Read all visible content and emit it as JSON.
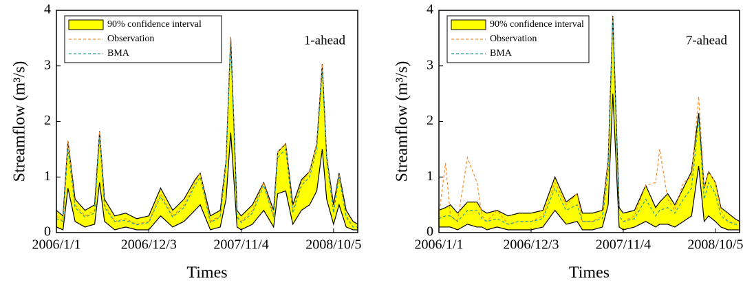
{
  "chart_data": [
    {
      "type": "line",
      "annotation": "1-ahead",
      "xlabel": "Times",
      "ylabel": "Streamflow (m³/s)",
      "legend": "upper left",
      "xlim": [
        "2006/1/1",
        "2009/1/1"
      ],
      "xticks": [
        "2006/1/1",
        "2006/12/3",
        "2007/11/4",
        "2008/10/5"
      ],
      "ylim": [
        0,
        4
      ],
      "yticks": [
        0,
        1,
        2,
        3,
        4
      ],
      "x": [
        "2006/1/1",
        "2006/1/25",
        "2006/2/12",
        "2006/3/10",
        "2006/4/15",
        "2006/5/20",
        "2006/6/7",
        "2006/6/25",
        "2006/8/1",
        "2006/9/10",
        "2006/10/20",
        "2006/12/3",
        "2007/1/15",
        "2007/2/28",
        "2007/4/10",
        "2007/5/20",
        "2007/6/8",
        "2007/7/15",
        "2007/8/20",
        "2007/9/10",
        "2007/9/27",
        "2007/10/20",
        "2007/11/4",
        "2007/12/15",
        "2008/1/25",
        "2008/3/1",
        "2008/3/16",
        "2008/4/14",
        "2008/5/10",
        "2008/6/10",
        "2008/7/10",
        "2008/8/5",
        "2008/8/25",
        "2008/9/10",
        "2008/10/5",
        "2008/10/25",
        "2008/11/20",
        "2008/12/15",
        "2009/1/1"
      ],
      "series": [
        {
          "name": "90% confidence interval",
          "color": "#ffff00",
          "upper": [
            0.4,
            0.3,
            1.65,
            0.6,
            0.4,
            0.5,
            1.82,
            0.6,
            0.3,
            0.35,
            0.25,
            0.3,
            0.8,
            0.4,
            0.6,
            0.95,
            1.07,
            0.3,
            0.4,
            1.3,
            3.52,
            0.4,
            0.3,
            0.5,
            0.9,
            0.4,
            1.45,
            1.6,
            0.5,
            0.95,
            1.1,
            1.6,
            3.03,
            1.37,
            0.5,
            1.07,
            0.4,
            0.2,
            0.15
          ],
          "lower": [
            0.1,
            0.05,
            0.8,
            0.2,
            0.1,
            0.15,
            0.9,
            0.2,
            0.05,
            0.1,
            0.05,
            0.05,
            0.3,
            0.1,
            0.2,
            0.4,
            0.5,
            0.05,
            0.1,
            0.6,
            1.8,
            0.1,
            0.05,
            0.15,
            0.4,
            0.1,
            0.7,
            0.75,
            0.15,
            0.4,
            0.5,
            0.75,
            1.5,
            0.6,
            0.15,
            0.5,
            0.1,
            0.05,
            0.05
          ]
        },
        {
          "name": "Observation",
          "color": "#f28c28",
          "values": [
            0.3,
            0.2,
            1.65,
            0.5,
            0.3,
            0.4,
            1.82,
            0.5,
            0.2,
            0.25,
            0.15,
            0.2,
            0.7,
            0.3,
            0.5,
            0.9,
            1.07,
            0.2,
            0.3,
            1.3,
            3.52,
            0.3,
            0.2,
            0.4,
            0.9,
            0.3,
            1.45,
            1.6,
            0.4,
            0.9,
            1.1,
            1.6,
            3.03,
            1.37,
            0.4,
            1.05,
            0.3,
            0.1,
            0.1
          ]
        },
        {
          "name": "BMA",
          "color": "#2a9d9d",
          "values": [
            0.25,
            0.2,
            1.5,
            0.45,
            0.28,
            0.35,
            1.7,
            0.45,
            0.2,
            0.22,
            0.14,
            0.18,
            0.65,
            0.28,
            0.45,
            0.85,
            1.0,
            0.18,
            0.28,
            1.2,
            3.4,
            0.28,
            0.18,
            0.35,
            0.85,
            0.28,
            1.35,
            1.5,
            0.35,
            0.85,
            1.0,
            1.5,
            2.9,
            1.3,
            0.35,
            1.0,
            0.28,
            0.1,
            0.1
          ]
        }
      ]
    },
    {
      "type": "line",
      "annotation": "7-ahead",
      "xlabel": "Times",
      "ylabel": "Streamflow (m³/s)",
      "legend": "upper left",
      "xlim": [
        "2006/1/1",
        "2009/1/1"
      ],
      "xticks": [
        "2006/1/1",
        "2006/12/3",
        "2007/11/4",
        "2008/10/5"
      ],
      "ylim": [
        0,
        4
      ],
      "yticks": [
        0,
        1,
        2,
        3,
        4
      ],
      "x": [
        "2006/1/1",
        "2006/1/25",
        "2006/2/12",
        "2006/3/10",
        "2006/4/15",
        "2006/5/20",
        "2006/6/7",
        "2006/6/25",
        "2006/8/1",
        "2006/9/10",
        "2006/10/20",
        "2006/12/3",
        "2007/1/15",
        "2007/2/28",
        "2007/4/10",
        "2007/5/20",
        "2007/6/8",
        "2007/7/15",
        "2007/8/20",
        "2007/9/10",
        "2007/9/27",
        "2007/10/20",
        "2007/11/4",
        "2007/12/15",
        "2008/1/25",
        "2008/3/1",
        "2008/3/16",
        "2008/4/14",
        "2008/5/10",
        "2008/6/10",
        "2008/7/10",
        "2008/8/5",
        "2008/8/25",
        "2008/9/10",
        "2008/10/5",
        "2008/10/25",
        "2008/11/20",
        "2008/12/15",
        "2009/1/1"
      ],
      "series": [
        {
          "name": "90% confidence interval",
          "color": "#ffff00",
          "upper": [
            0.4,
            0.45,
            0.5,
            0.35,
            0.55,
            0.55,
            0.4,
            0.35,
            0.4,
            0.3,
            0.35,
            0.35,
            0.4,
            1.0,
            0.55,
            0.7,
            0.35,
            0.35,
            0.4,
            1.3,
            3.9,
            0.45,
            0.35,
            0.4,
            0.85,
            0.45,
            0.55,
            0.7,
            0.5,
            0.8,
            1.1,
            2.15,
            0.8,
            1.1,
            0.9,
            0.45,
            0.35,
            0.25,
            0.2
          ],
          "lower": [
            0.1,
            0.1,
            0.1,
            0.05,
            0.15,
            0.1,
            0.1,
            0.05,
            0.1,
            0.05,
            0.05,
            0.05,
            0.1,
            0.4,
            0.15,
            0.2,
            0.05,
            0.05,
            0.1,
            0.5,
            2.5,
            0.1,
            0.05,
            0.1,
            0.2,
            0.1,
            0.15,
            0.15,
            0.1,
            0.2,
            0.3,
            1.2,
            0.2,
            0.3,
            0.2,
            0.1,
            0.05,
            0.05,
            0.05
          ]
        },
        {
          "name": "Observation",
          "color": "#f28c28",
          "values": [
            0.3,
            1.25,
            0.3,
            0.2,
            1.35,
            0.9,
            0.3,
            0.2,
            0.4,
            0.15,
            0.2,
            0.2,
            0.3,
            0.9,
            0.5,
            0.7,
            0.2,
            0.2,
            0.3,
            1.3,
            3.88,
            0.3,
            0.2,
            0.3,
            0.85,
            0.9,
            1.5,
            0.6,
            0.4,
            0.9,
            1.0,
            2.45,
            0.8,
            1.1,
            0.9,
            0.4,
            0.2,
            0.15,
            0.15
          ]
        },
        {
          "name": "BMA",
          "color": "#2a9d9d",
          "values": [
            0.25,
            0.3,
            0.3,
            0.2,
            0.4,
            0.4,
            0.25,
            0.2,
            0.25,
            0.15,
            0.2,
            0.2,
            0.25,
            0.8,
            0.4,
            0.5,
            0.2,
            0.2,
            0.25,
            1.1,
            3.8,
            0.3,
            0.2,
            0.25,
            0.6,
            0.3,
            0.4,
            0.45,
            0.35,
            0.6,
            0.8,
            2.05,
            0.6,
            0.9,
            0.7,
            0.3,
            0.2,
            0.15,
            0.15
          ]
        }
      ]
    }
  ]
}
